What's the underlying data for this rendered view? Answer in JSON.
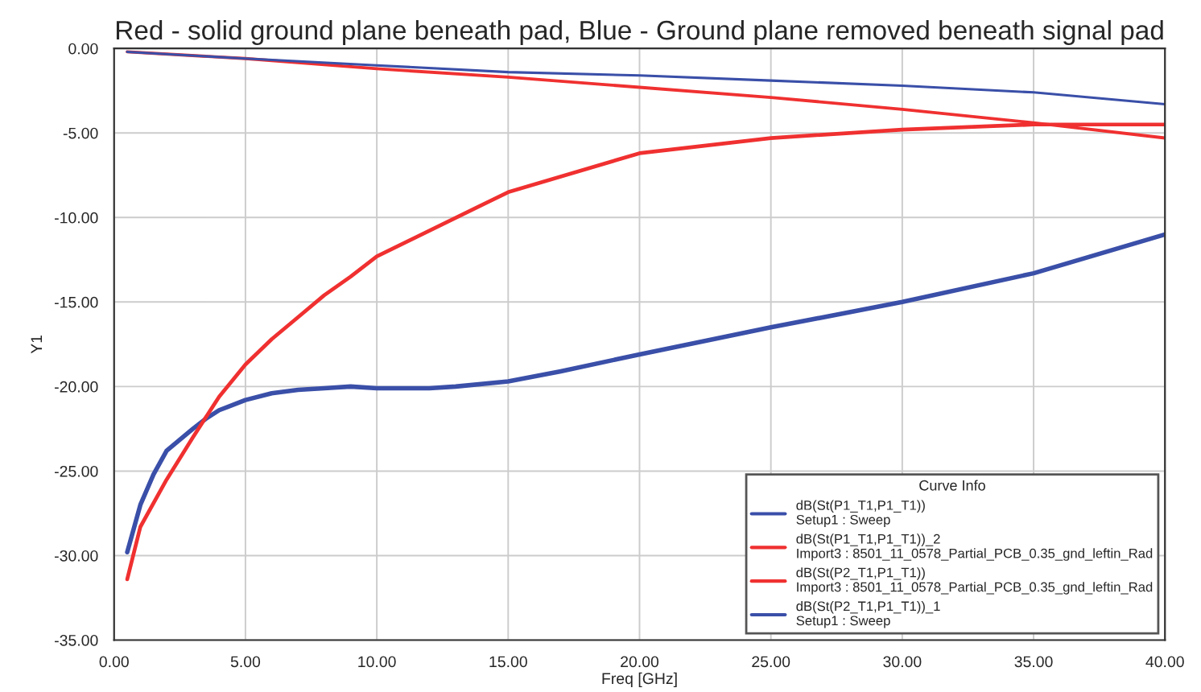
{
  "chart_data": {
    "type": "line",
    "title": "Red - solid ground plane beneath pad, Blue - Ground plane removed beneath signal pad",
    "xlabel": "Freq [GHz]",
    "ylabel": "Y1",
    "legend_title": "Curve Info",
    "legend": "bottom right",
    "grid": true,
    "line_style": "solid",
    "marker": "none",
    "xlim": [
      0,
      40
    ],
    "ylim": [
      -35,
      0
    ],
    "xticks": [
      {
        "value": 0,
        "label": "0.00"
      },
      {
        "value": 5,
        "label": "5.00"
      },
      {
        "value": 10,
        "label": "10.00"
      },
      {
        "value": 15,
        "label": "15.00"
      },
      {
        "value": 20,
        "label": "20.00"
      },
      {
        "value": 25,
        "label": "25.00"
      },
      {
        "value": 30,
        "label": "30.00"
      },
      {
        "value": 35,
        "label": "35.00"
      },
      {
        "value": 40,
        "label": "40.00"
      }
    ],
    "yticks": [
      {
        "value": -35,
        "label": "-35.00"
      },
      {
        "value": -30,
        "label": "-30.00"
      },
      {
        "value": -25,
        "label": "-25.00"
      },
      {
        "value": -20,
        "label": "-20.00"
      },
      {
        "value": -15,
        "label": "-15.00"
      },
      {
        "value": -10,
        "label": "-10.00"
      },
      {
        "value": -5,
        "label": "-5.00"
      },
      {
        "value": 0,
        "label": "0.00"
      }
    ],
    "series": [
      {
        "name": "dB(St(P1_T1,P1_T1))\nSetup1 : Sweep",
        "color": "#3a4fa8",
        "x": [
          0.5,
          1,
          1.5,
          2,
          3,
          3.5,
          4,
          5,
          6,
          7,
          8,
          9,
          10,
          12,
          13,
          15,
          17,
          20,
          25,
          30,
          35,
          40
        ],
        "values": [
          -29.8,
          -27,
          -25.2,
          -23.8,
          -22.5,
          -21.9,
          -21.4,
          -20.8,
          -20.4,
          -20.2,
          -20.1,
          -20.0,
          -20.1,
          -20.1,
          -20.0,
          -19.7,
          -19.1,
          -18.1,
          -16.5,
          -15.0,
          -13.3,
          -11.0
        ]
      },
      {
        "name": "dB(St(P1_T1,P1_T1))_2\nImport3 : 8501_11_0578_Partial_PCB_0.35_gnd_leftin_Rad",
        "color": "#f03030",
        "x": [
          0.5,
          1,
          2,
          3,
          4,
          5,
          6,
          7,
          8,
          9,
          10,
          15,
          20,
          25,
          30,
          35,
          40
        ],
        "values": [
          -31.4,
          -28.3,
          -25.5,
          -23.0,
          -20.6,
          -18.7,
          -17.2,
          -15.9,
          -14.6,
          -13.5,
          -12.3,
          -8.5,
          -6.2,
          -5.3,
          -4.8,
          -4.5,
          -4.5
        ]
      },
      {
        "name": "dB(St(P2_T1,P1_T1))\nImport3 : 8501_11_0578_Partial_PCB_0.35_gnd_leftin_Rad",
        "color": "#f03030",
        "x": [
          0.5,
          5,
          10,
          15,
          20,
          25,
          30,
          35,
          40
        ],
        "values": [
          -0.2,
          -0.6,
          -1.2,
          -1.7,
          -2.3,
          -2.9,
          -3.6,
          -4.4,
          -5.3
        ]
      },
      {
        "name": "dB(St(P2_T1,P1_T1))_1\nSetup1 : Sweep",
        "color": "#3a4fa8",
        "x": [
          0.5,
          5,
          10,
          15,
          20,
          25,
          30,
          35,
          40
        ],
        "values": [
          -0.2,
          -0.6,
          -1.0,
          -1.4,
          -1.6,
          -1.9,
          -2.2,
          -2.6,
          -3.3
        ]
      }
    ]
  }
}
